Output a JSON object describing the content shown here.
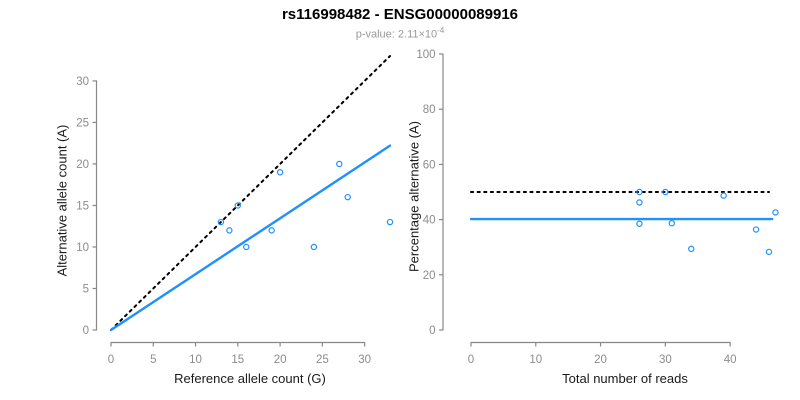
{
  "header": {
    "title": "rs116998482 - ENSG00000089916",
    "subtitle_base": "p-value: 2.11×10",
    "subtitle_exponent": "-4"
  },
  "colors": {
    "accent_blue": "#1E90FF",
    "reference_line": "#000000",
    "axis_line": "#888888",
    "tick_label": "#8c8c8c",
    "axis_title": "#1a1a1a",
    "title_text": "#000000",
    "subtitle_text": "#999999"
  },
  "chart_data": [
    {
      "type": "scatter",
      "name": "allele-count-scatter",
      "xlabel": "Reference allele count (G)",
      "ylabel": "Alternative allele count (A)",
      "xlim": [
        0,
        33
      ],
      "ylim": [
        0,
        33
      ],
      "xticks": [
        0,
        5,
        10,
        15,
        20,
        25,
        30
      ],
      "yticks": [
        0,
        5,
        10,
        15,
        20,
        25,
        30
      ],
      "grid": false,
      "points": [
        [
          13,
          13
        ],
        [
          14,
          12
        ],
        [
          15,
          15
        ],
        [
          16,
          10
        ],
        [
          19,
          12
        ],
        [
          20,
          19
        ],
        [
          24,
          10
        ],
        [
          27,
          20
        ],
        [
          28,
          16
        ],
        [
          33,
          13
        ]
      ],
      "lines": [
        {
          "name": "identity-line",
          "style": "dotted",
          "color": "#000000",
          "from": [
            0,
            0
          ],
          "to": [
            33,
            33
          ]
        },
        {
          "name": "fit-line",
          "style": "solid",
          "color": "#1E90FF",
          "from": [
            0,
            0
          ],
          "to": [
            33,
            22.2
          ]
        }
      ]
    },
    {
      "type": "scatter",
      "name": "percentage-scatter",
      "xlabel": "Total number of reads",
      "ylabel": "Percentage alternative (A)",
      "xlim": [
        0,
        47.7
      ],
      "ylim": [
        0,
        100
      ],
      "xticks": [
        0,
        10,
        20,
        30,
        40
      ],
      "yticks": [
        0,
        20,
        40,
        60,
        80,
        100
      ],
      "grid": false,
      "points": [
        [
          26,
          50
        ],
        [
          26,
          46.2
        ],
        [
          26,
          38.5
        ],
        [
          30,
          50
        ],
        [
          31,
          38.7
        ],
        [
          34,
          29.4
        ],
        [
          39,
          48.7
        ],
        [
          44,
          36.4
        ],
        [
          46,
          28.3
        ],
        [
          47,
          42.6
        ]
      ],
      "lines": [
        {
          "name": "expected-50pct-line",
          "style": "dotted",
          "color": "#000000",
          "from": [
            0,
            50
          ],
          "to": [
            46,
            50
          ]
        },
        {
          "name": "fit-line",
          "style": "solid",
          "color": "#1E90FF",
          "from": [
            0,
            40.2
          ],
          "to": [
            46.5,
            40.2
          ]
        }
      ]
    }
  ]
}
